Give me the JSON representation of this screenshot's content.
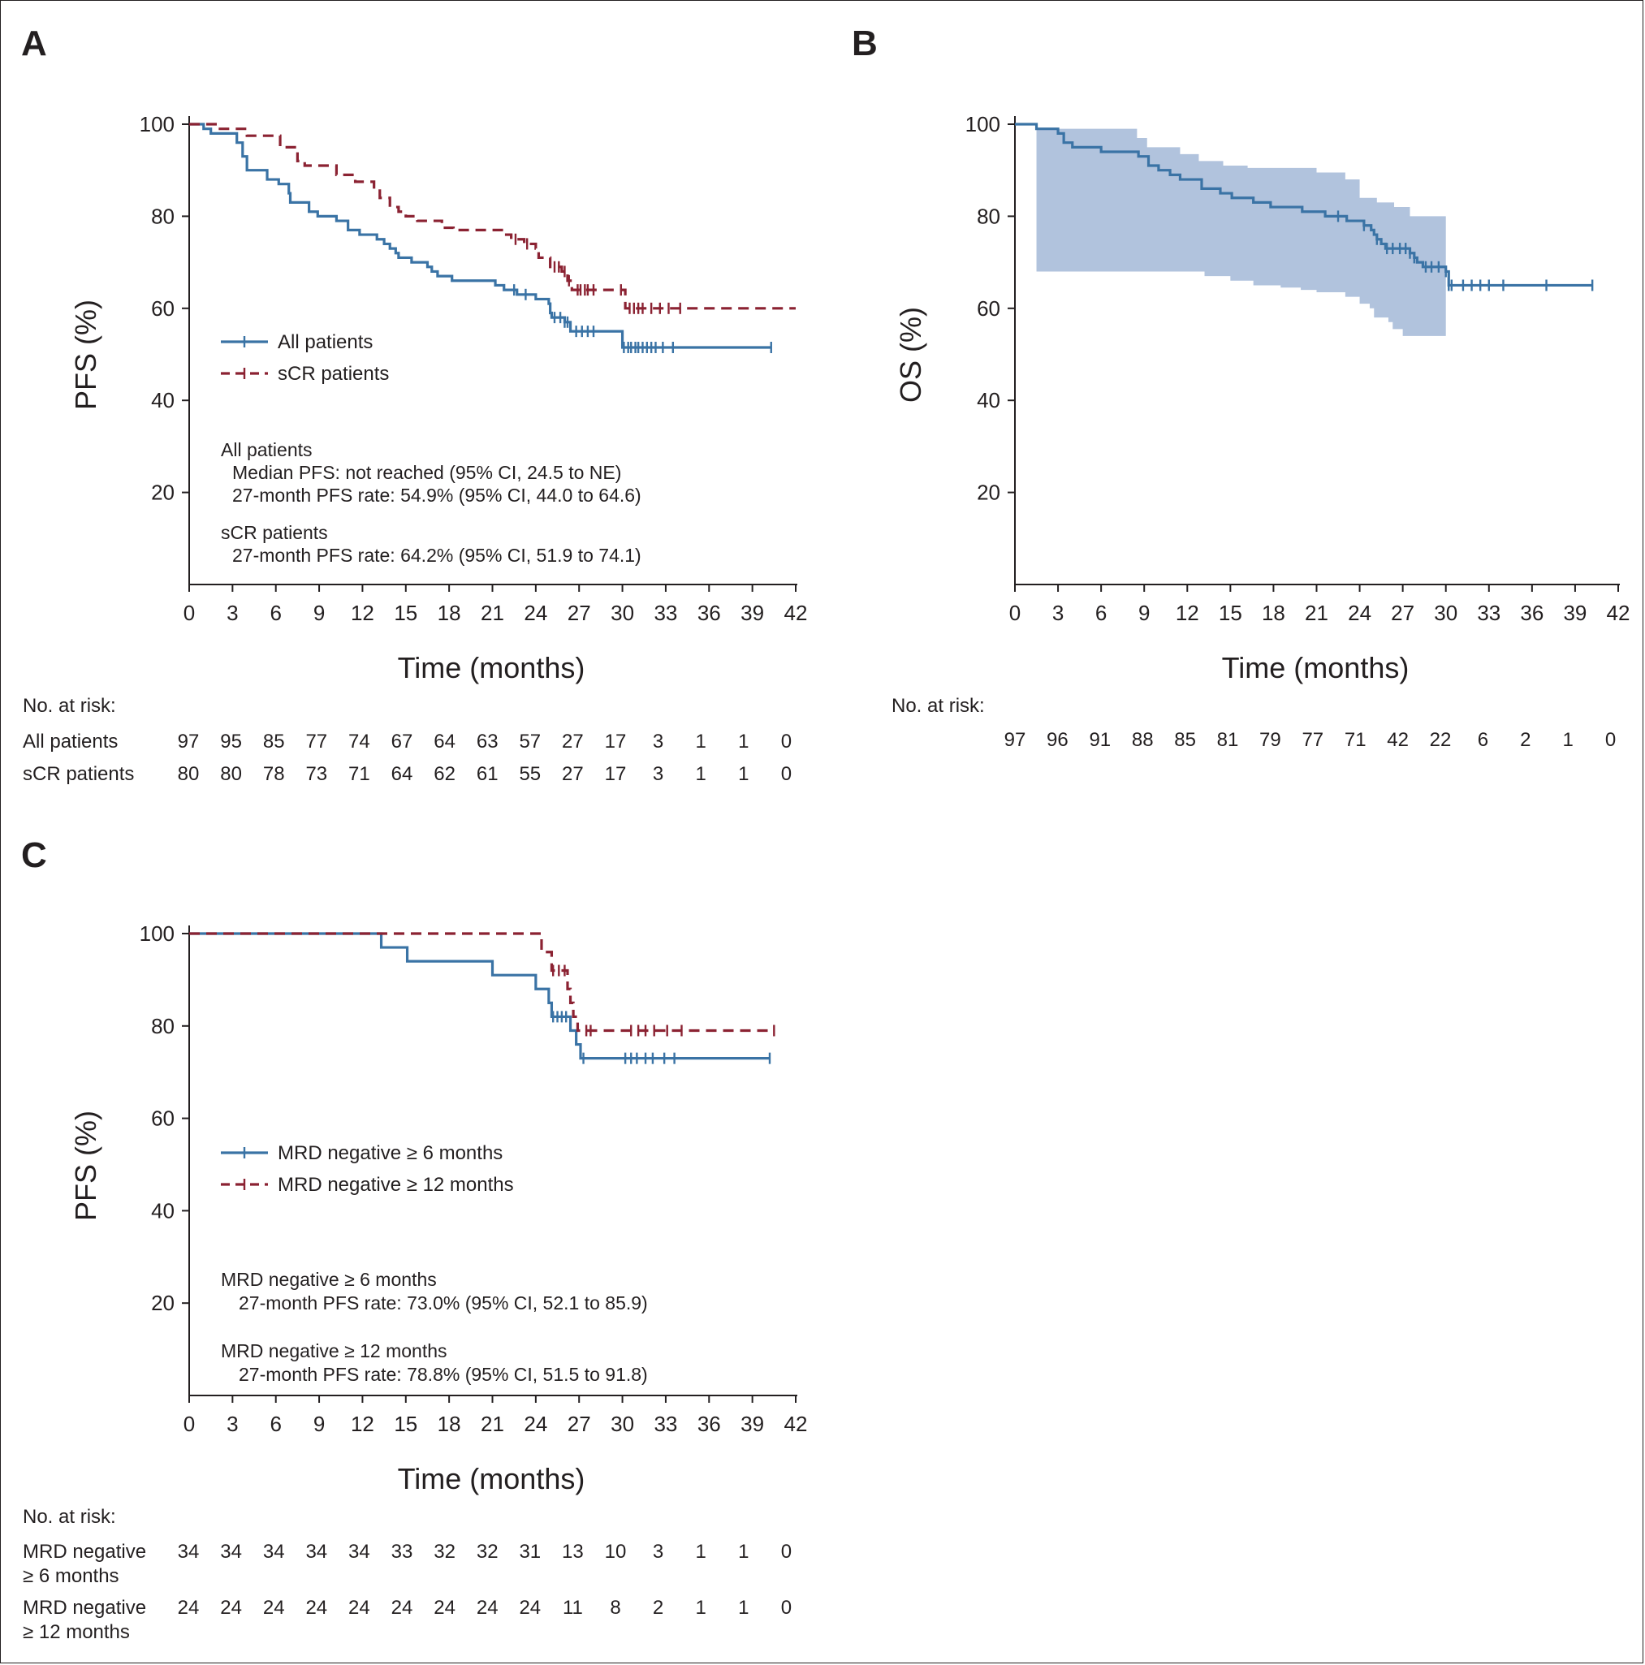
{
  "colors": {
    "blue": "#3a73a5",
    "red": "#8b2232",
    "band": "#a3b8d7",
    "axis": "#231f20"
  },
  "x_ticks": [
    "0",
    "3",
    "6",
    "9",
    "12",
    "15",
    "18",
    "21",
    "24",
    "27",
    "30",
    "33",
    "36",
    "39",
    "42"
  ],
  "y_ticks": [
    "100",
    "80",
    "60",
    "40",
    "20"
  ],
  "chart_data": [
    {
      "panel": "A",
      "type": "line",
      "subtype": "kaplan-meier",
      "xlabel": "Time (months)",
      "ylabel": "PFS (%)",
      "xlim": [
        0,
        42
      ],
      "ylim": [
        0,
        100
      ],
      "legend": [
        {
          "label": "All patients",
          "color": "blue",
          "dash": false
        },
        {
          "label": "sCR patients",
          "color": "red",
          "dash": true
        }
      ],
      "series": [
        {
          "name": "All patients",
          "color": "blue",
          "dash": false,
          "steps": [
            [
              0,
              100
            ],
            [
              1,
              99
            ],
            [
              1.5,
              98
            ],
            [
              3.3,
              96
            ],
            [
              3.7,
              93
            ],
            [
              4,
              90
            ],
            [
              5.4,
              88
            ],
            [
              6.2,
              87
            ],
            [
              6.9,
              85
            ],
            [
              7,
              83
            ],
            [
              8.3,
              81
            ],
            [
              8.9,
              80
            ],
            [
              10.2,
              79
            ],
            [
              11,
              77
            ],
            [
              11.8,
              76
            ],
            [
              13,
              75
            ],
            [
              13.5,
              74
            ],
            [
              13.9,
              73
            ],
            [
              14.3,
              72
            ],
            [
              14.5,
              71
            ],
            [
              15.4,
              70
            ],
            [
              16.5,
              69
            ],
            [
              16.8,
              68
            ],
            [
              17.2,
              67
            ],
            [
              18.2,
              66
            ],
            [
              21.2,
              65
            ],
            [
              21.8,
              64
            ],
            [
              22.7,
              63
            ],
            [
              24,
              62
            ],
            [
              24.9,
              61
            ],
            [
              25,
              59
            ],
            [
              25.1,
              58
            ],
            [
              26,
              57
            ],
            [
              26.4,
              55
            ],
            [
              29.6,
              55
            ],
            [
              30,
              51.5
            ],
            [
              40.3,
              51.5
            ]
          ],
          "censor_x": [
            22.5,
            23.3,
            25.3,
            25.7,
            26,
            26.2,
            26.8,
            27.2,
            27.6,
            28,
            30.1,
            30.4,
            30.6,
            30.9,
            31.1,
            31.4,
            31.7,
            32,
            32.3,
            32.8,
            33.5,
            40.3
          ]
        },
        {
          "name": "sCR patients",
          "color": "red",
          "dash": true,
          "steps": [
            [
              0,
              100
            ],
            [
              2,
              99
            ],
            [
              4,
              97.5
            ],
            [
              6.3,
              95
            ],
            [
              7.5,
              92
            ],
            [
              8,
              91
            ],
            [
              10.2,
              89
            ],
            [
              11.5,
              87.5
            ],
            [
              12.8,
              86
            ],
            [
              13.2,
              84
            ],
            [
              13.9,
              82
            ],
            [
              14.5,
              81
            ],
            [
              15,
              80
            ],
            [
              15.8,
              79
            ],
            [
              17.5,
              77.5
            ],
            [
              18.3,
              77
            ],
            [
              21.8,
              76
            ],
            [
              22.3,
              75
            ],
            [
              23.2,
              74
            ],
            [
              24,
              73
            ],
            [
              24.2,
              71
            ],
            [
              25,
              69
            ],
            [
              25.8,
              68
            ],
            [
              26.2,
              66
            ],
            [
              26.5,
              64
            ],
            [
              30,
              64
            ],
            [
              30.2,
              60
            ],
            [
              42,
              60
            ]
          ],
          "censor_x": [
            22.6,
            23.4,
            25.3,
            25.6,
            26,
            26.3,
            26.9,
            27.1,
            27.4,
            27.6,
            28,
            29.9,
            30.5,
            30.8,
            31.1,
            31.4,
            32,
            32.6,
            33.2,
            34
          ]
        }
      ],
      "notes": [
        {
          "heading": "All patients",
          "lines": [
            "Median PFS: not reached (95% CI, 24.5 to NE)",
            "27-month PFS rate: 54.9% (95% CI, 44.0 to 64.6)"
          ]
        },
        {
          "heading": "sCR patients",
          "lines": [
            "27-month PFS rate: 64.2% (95% CI, 51.9 to 74.1)"
          ]
        }
      ],
      "risk_table": {
        "header": "No. at risk:",
        "rows": [
          {
            "label": [
              "All patients"
            ],
            "values": [
              "97",
              "95",
              "85",
              "77",
              "74",
              "67",
              "64",
              "63",
              "57",
              "27",
              "17",
              "3",
              "1",
              "1",
              "0"
            ]
          },
          {
            "label": [
              "sCR patients"
            ],
            "values": [
              "80",
              "80",
              "78",
              "73",
              "71",
              "64",
              "62",
              "61",
              "55",
              "27",
              "17",
              "3",
              "1",
              "1",
              "0"
            ]
          }
        ]
      }
    },
    {
      "panel": "B",
      "type": "line",
      "subtype": "kaplan-meier",
      "xlabel": "Time (months)",
      "ylabel": "OS (%)",
      "xlim": [
        0,
        42
      ],
      "ylim": [
        0,
        100
      ],
      "confidence_band": {
        "x_start": 1.5,
        "x_end": 30,
        "upper": [
          [
            1.5,
            99
          ],
          [
            7,
            99
          ],
          [
            8.5,
            97
          ],
          [
            9.2,
            95
          ],
          [
            11.5,
            93.5
          ],
          [
            12.8,
            92
          ],
          [
            14.5,
            91
          ],
          [
            16.2,
            90.5
          ],
          [
            21,
            89.5
          ],
          [
            23,
            88
          ],
          [
            24,
            84
          ],
          [
            25.2,
            83
          ],
          [
            26.4,
            82
          ],
          [
            27.5,
            80
          ],
          [
            30,
            79.5
          ]
        ],
        "lower": [
          [
            1.5,
            68
          ],
          [
            12,
            68
          ],
          [
            13.2,
            67
          ],
          [
            15,
            66
          ],
          [
            16.6,
            65
          ],
          [
            18.5,
            64.5
          ],
          [
            19.9,
            64
          ],
          [
            21,
            63.5
          ],
          [
            23,
            62.5
          ],
          [
            24,
            61
          ],
          [
            24.7,
            60
          ],
          [
            25,
            58
          ],
          [
            26,
            57
          ],
          [
            26.3,
            55.5
          ],
          [
            27,
            54
          ],
          [
            30,
            54
          ]
        ]
      },
      "series": [
        {
          "name": "",
          "color": "blue",
          "dash": false,
          "steps": [
            [
              0,
              100
            ],
            [
              1.5,
              99
            ],
            [
              3,
              98
            ],
            [
              3.4,
              96
            ],
            [
              4,
              95
            ],
            [
              6,
              94
            ],
            [
              8.6,
              93
            ],
            [
              9.3,
              91
            ],
            [
              10,
              90
            ],
            [
              10.8,
              89
            ],
            [
              11.5,
              88
            ],
            [
              13,
              86
            ],
            [
              14.3,
              85
            ],
            [
              15.1,
              84
            ],
            [
              16.6,
              83
            ],
            [
              17.8,
              82
            ],
            [
              20,
              81
            ],
            [
              21.6,
              80
            ],
            [
              23.1,
              79
            ],
            [
              24.3,
              78
            ],
            [
              24.8,
              77
            ],
            [
              25,
              76
            ],
            [
              25.2,
              75
            ],
            [
              25.5,
              74
            ],
            [
              25.8,
              73
            ],
            [
              27.5,
              72
            ],
            [
              27.8,
              71
            ],
            [
              28,
              70
            ],
            [
              28.4,
              69
            ],
            [
              30,
              68
            ],
            [
              30.2,
              65
            ],
            [
              40.2,
              65
            ]
          ],
          "censor_x": [
            22.5,
            24.3,
            25.2,
            25.9,
            26.3,
            26.8,
            27.2,
            27.5,
            27.8,
            28.6,
            29,
            29.5,
            30,
            30.2,
            30.4,
            31.2,
            31.8,
            32.4,
            33,
            34,
            37,
            40.2
          ]
        }
      ],
      "risk_table": {
        "header": "No. at risk:",
        "rows": [
          {
            "label": [],
            "values": [
              "97",
              "96",
              "91",
              "88",
              "85",
              "81",
              "79",
              "77",
              "71",
              "42",
              "22",
              "6",
              "2",
              "1",
              "0"
            ]
          }
        ]
      }
    },
    {
      "panel": "C",
      "type": "line",
      "subtype": "kaplan-meier",
      "xlabel": "Time (months)",
      "ylabel": "PFS (%)",
      "xlim": [
        0,
        42
      ],
      "ylim": [
        0,
        100
      ],
      "legend": [
        {
          "label": "MRD negative ≥ 6 months",
          "color": "blue",
          "dash": false
        },
        {
          "label": "MRD negative ≥ 12 months",
          "color": "red",
          "dash": true
        }
      ],
      "series": [
        {
          "name": "MRD negative ≥ 6 months",
          "color": "blue",
          "dash": false,
          "steps": [
            [
              0,
              100
            ],
            [
              13.3,
              97
            ],
            [
              15.1,
              94
            ],
            [
              21,
              91
            ],
            [
              24,
              88
            ],
            [
              24.9,
              85
            ],
            [
              25.1,
              82
            ],
            [
              26.4,
              79
            ],
            [
              26.8,
              76
            ],
            [
              27.1,
              73
            ],
            [
              40.2,
              73
            ]
          ],
          "censor_x": [
            25.2,
            25.5,
            25.8,
            26.1,
            27.3,
            30.2,
            30.6,
            31,
            31.6,
            32.1,
            32.9,
            33.6,
            40.2
          ]
        },
        {
          "name": "MRD negative ≥ 12 months",
          "color": "red",
          "dash": true,
          "steps": [
            [
              0,
              100
            ],
            [
              13.3,
              100
            ],
            [
              24,
              100
            ],
            [
              24.4,
              96
            ],
            [
              25.1,
              92
            ],
            [
              26.2,
              88
            ],
            [
              26.4,
              85
            ],
            [
              26.6,
              82
            ],
            [
              26.9,
              79
            ],
            [
              40.5,
              79
            ]
          ],
          "censor_x": [
            25.2,
            25.6,
            26,
            27.5,
            27.8,
            30.6,
            31.1,
            31.6,
            32.2,
            33.1,
            34.1,
            40.5
          ]
        }
      ],
      "notes": [
        {
          "heading": "MRD negative ≥ 6 months",
          "lines": [
            "27-month PFS rate: 73.0% (95% CI, 52.1 to 85.9)"
          ]
        },
        {
          "heading": "MRD negative ≥ 12 months",
          "lines": [
            "27-month PFS rate: 78.8% (95% CI, 51.5 to 91.8)"
          ]
        }
      ],
      "risk_table": {
        "header": "No. at risk:",
        "rows": [
          {
            "label": [
              "MRD negative",
              "≥ 6 months"
            ],
            "values": [
              "34",
              "34",
              "34",
              "34",
              "34",
              "33",
              "32",
              "32",
              "31",
              "13",
              "10",
              "3",
              "1",
              "1",
              "0"
            ]
          },
          {
            "label": [
              "MRD negative",
              "≥ 12 months"
            ],
            "values": [
              "24",
              "24",
              "24",
              "24",
              "24",
              "24",
              "24",
              "24",
              "24",
              "11",
              "8",
              "2",
              "1",
              "1",
              "0"
            ]
          }
        ]
      }
    }
  ]
}
